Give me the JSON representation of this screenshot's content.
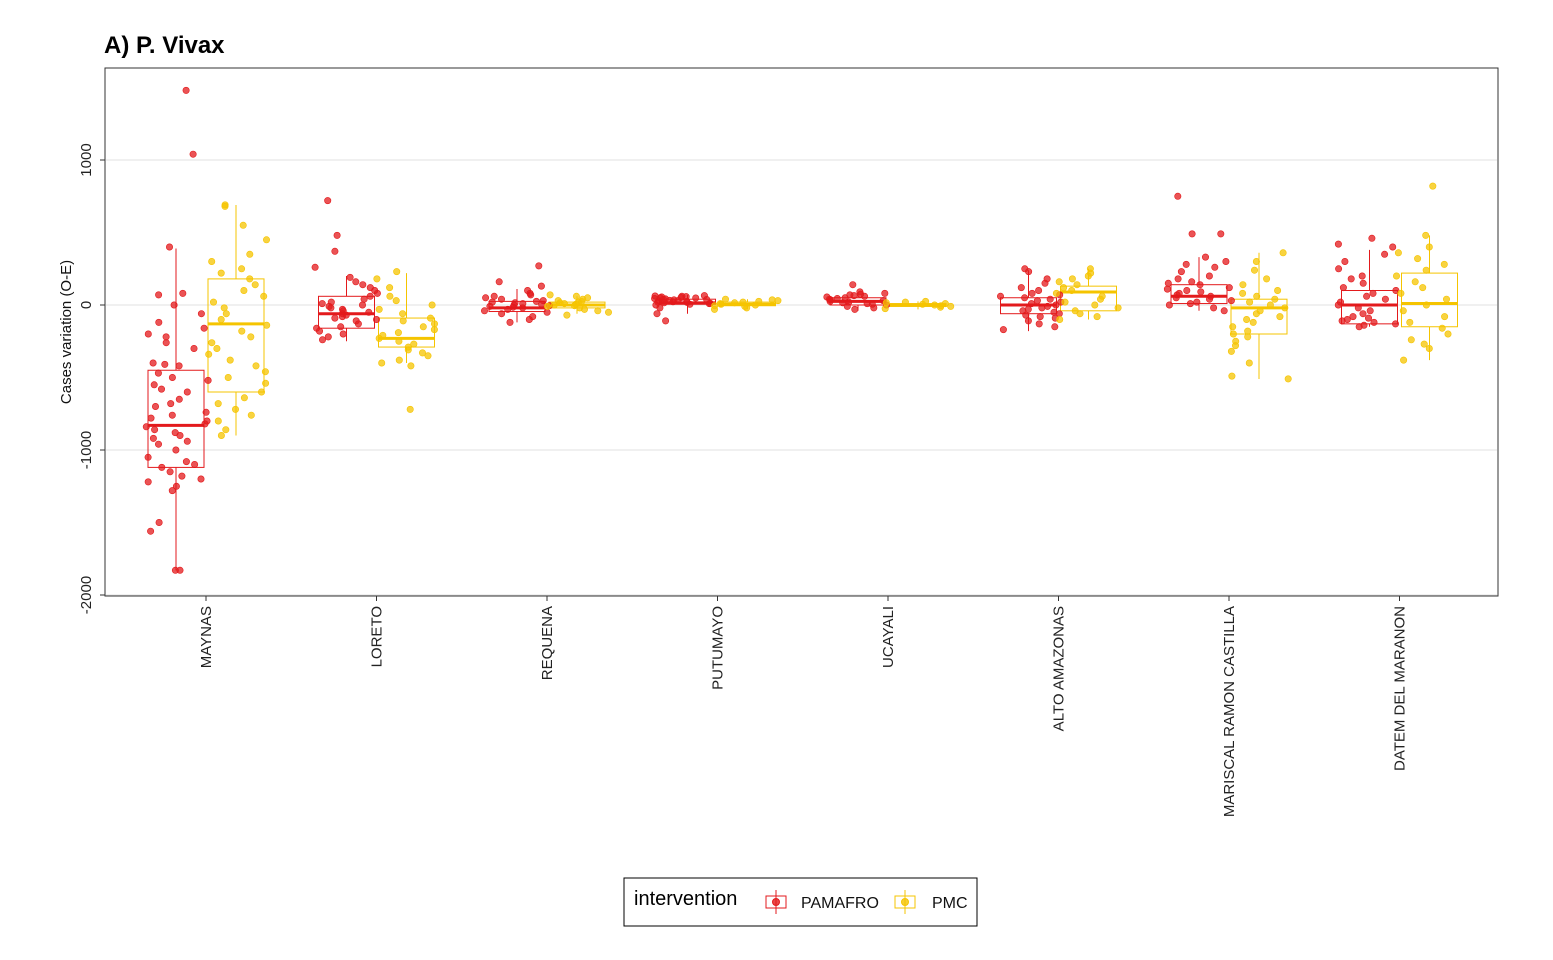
{
  "chart_data": {
    "type": "box-jitter",
    "title": "A) P. Vivax",
    "ylabel": "Cases variation (O-E)",
    "xlabel": "",
    "ylim": [
      -2000,
      1500
    ],
    "yticks": [
      -2000,
      -1000,
      0,
      1000
    ],
    "grid": "horizontal major",
    "legend_position": "bottom",
    "legend_title": "intervention",
    "categories": [
      "MAYNAS",
      "LORETO",
      "REQUENA",
      "PUTUMAYO",
      "UCAYALI",
      "ALTO AMAZONAS",
      "MARISCAL RAMON CASTILLA",
      "DATEM DEL MARANON"
    ],
    "series": [
      {
        "name": "PAMAFRO",
        "color": "#E31A1C",
        "boxes": [
          {
            "min": -1830,
            "q1": -1120,
            "median": -830,
            "q3": -450,
            "max": 390
          },
          {
            "min": -250,
            "q1": -160,
            "median": -60,
            "q3": 60,
            "max": 200
          },
          {
            "min": -120,
            "q1": -45,
            "median": -20,
            "q3": 25,
            "max": 110
          },
          {
            "min": -60,
            "q1": 5,
            "median": 15,
            "q3": 40,
            "max": 70
          },
          {
            "min": -40,
            "q1": 0,
            "median": 25,
            "q3": 50,
            "max": 90
          },
          {
            "min": -180,
            "q1": -60,
            "median": 0,
            "q3": 50,
            "max": 240
          },
          {
            "min": -40,
            "q1": 10,
            "median": 60,
            "q3": 140,
            "max": 330
          },
          {
            "min": -150,
            "q1": -130,
            "median": 0,
            "q3": 100,
            "max": 380
          }
        ],
        "points": [
          [
            -1830,
            -1830,
            -1560,
            -1500,
            -1280,
            -1250,
            -1220,
            -1200,
            -1180,
            -1150,
            -1120,
            -1100,
            -1080,
            -1050,
            -1000,
            -960,
            -940,
            -920,
            -900,
            -880,
            -860,
            -840,
            -820,
            -800,
            -780,
            -760,
            -740,
            -700,
            -680,
            -650,
            -600,
            -580,
            -550,
            -520,
            -500,
            -470,
            -420,
            -410,
            -400,
            -300,
            -260,
            -220,
            -200,
            -160,
            -120,
            -60,
            0,
            70,
            80,
            400,
            1040,
            1480
          ],
          [
            -240,
            -220,
            -200,
            -180,
            -160,
            -150,
            -130,
            -110,
            -100,
            -90,
            -80,
            -70,
            -60,
            -50,
            -40,
            -30,
            -20,
            -10,
            0,
            10,
            20,
            40,
            60,
            80,
            100,
            120,
            140,
            160,
            190,
            260,
            370,
            480,
            720
          ],
          [
            -120,
            -100,
            -80,
            -60,
            -50,
            -40,
            -30,
            -20,
            -15,
            -10,
            -5,
            0,
            5,
            10,
            15,
            20,
            25,
            30,
            40,
            50,
            60,
            70,
            80,
            100,
            130,
            160,
            270
          ],
          [
            -110,
            -60,
            -20,
            0,
            5,
            10,
            12,
            15,
            18,
            20,
            22,
            25,
            28,
            30,
            32,
            35,
            38,
            40,
            42,
            45,
            48,
            50,
            52,
            55,
            58,
            60,
            62,
            65
          ],
          [
            -30,
            -20,
            -10,
            0,
            5,
            10,
            15,
            20,
            25,
            30,
            35,
            40,
            45,
            50,
            55,
            60,
            65,
            70,
            75,
            80,
            90,
            140
          ],
          [
            -170,
            -150,
            -130,
            -110,
            -90,
            -80,
            -70,
            -60,
            -50,
            -40,
            -30,
            -20,
            -10,
            0,
            10,
            20,
            30,
            40,
            50,
            60,
            70,
            80,
            100,
            120,
            150,
            180,
            230,
            250
          ],
          [
            -40,
            -20,
            0,
            10,
            20,
            30,
            40,
            50,
            60,
            70,
            80,
            90,
            100,
            110,
            120,
            140,
            150,
            160,
            180,
            200,
            230,
            260,
            280,
            300,
            330,
            490,
            490,
            750
          ],
          [
            -150,
            -140,
            -130,
            -120,
            -110,
            -100,
            -90,
            -80,
            -60,
            -40,
            -20,
            0,
            20,
            40,
            60,
            80,
            100,
            120,
            150,
            180,
            200,
            250,
            300,
            350,
            400,
            420,
            460
          ]
        ]
      },
      {
        "name": "PMC",
        "color": "#F5C400",
        "boxes": [
          {
            "min": -900,
            "q1": -600,
            "median": -130,
            "q3": 180,
            "max": 690
          },
          {
            "min": -400,
            "q1": -290,
            "median": -230,
            "q3": -90,
            "max": 220
          },
          {
            "min": -60,
            "q1": -20,
            "median": 0,
            "q3": 20,
            "max": 60
          },
          {
            "min": -30,
            "q1": -5,
            "median": 5,
            "q3": 20,
            "max": 40
          },
          {
            "min": -30,
            "q1": -10,
            "median": 0,
            "q3": 10,
            "max": 25
          },
          {
            "min": -100,
            "q1": -40,
            "median": 90,
            "q3": 130,
            "max": 250
          },
          {
            "min": -510,
            "q1": -200,
            "median": -20,
            "q3": 40,
            "max": 360
          },
          {
            "min": -380,
            "q1": -150,
            "median": 10,
            "q3": 220,
            "max": 480
          }
        ],
        "points": [
          [
            -900,
            -860,
            -800,
            -760,
            -720,
            -680,
            -640,
            -600,
            -540,
            -500,
            -460,
            -420,
            -380,
            -340,
            -300,
            -260,
            -220,
            -180,
            -140,
            -100,
            -60,
            -20,
            20,
            60,
            100,
            140,
            180,
            220,
            250,
            300,
            350,
            450,
            550,
            680,
            690
          ],
          [
            -720,
            -420,
            -400,
            -380,
            -350,
            -330,
            -310,
            -290,
            -270,
            -250,
            -230,
            -210,
            -190,
            -170,
            -150,
            -130,
            -110,
            -90,
            -60,
            -30,
            0,
            30,
            60,
            120,
            180,
            230
          ],
          [
            -70,
            -50,
            -40,
            -30,
            -20,
            -10,
            -5,
            0,
            5,
            10,
            15,
            20,
            25,
            30,
            40,
            50,
            60,
            70
          ],
          [
            -30,
            -20,
            -10,
            -5,
            0,
            5,
            10,
            15,
            20,
            25,
            30,
            35,
            40
          ],
          [
            -25,
            -15,
            -10,
            -5,
            0,
            5,
            10,
            15,
            20,
            25
          ],
          [
            -100,
            -80,
            -60,
            -40,
            -20,
            0,
            20,
            40,
            60,
            80,
            100,
            120,
            140,
            160,
            180,
            200,
            220,
            250
          ],
          [
            -510,
            -490,
            -400,
            -320,
            -280,
            -250,
            -220,
            -200,
            -180,
            -150,
            -120,
            -100,
            -80,
            -60,
            -40,
            -20,
            0,
            20,
            40,
            60,
            80,
            100,
            140,
            180,
            240,
            300,
            360
          ],
          [
            -380,
            -300,
            -270,
            -240,
            -200,
            -160,
            -120,
            -80,
            -40,
            0,
            40,
            80,
            120,
            160,
            200,
            240,
            280,
            320,
            360,
            400,
            480,
            820
          ]
        ]
      }
    ]
  }
}
